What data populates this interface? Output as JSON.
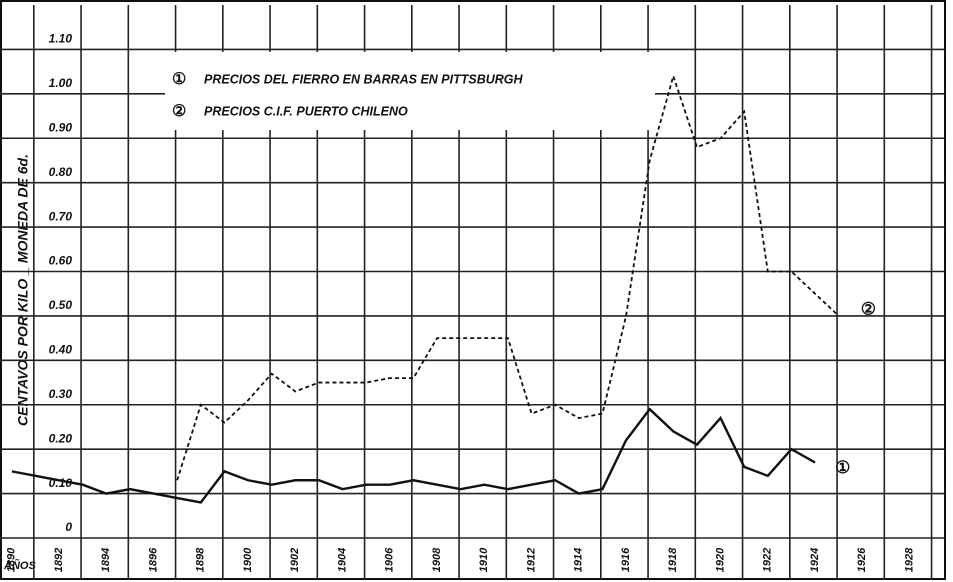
{
  "chart_data": {
    "type": "line",
    "y_label": "CENTAVOS POR KILO _ MONEDA DE 6d.",
    "x_label": "AÑOS",
    "x": [
      1890,
      1891,
      1892,
      1893,
      1894,
      1895,
      1896,
      1897,
      1898,
      1899,
      1900,
      1901,
      1902,
      1903,
      1904,
      1905,
      1906,
      1907,
      1908,
      1909,
      1910,
      1911,
      1912,
      1913,
      1914,
      1915,
      1916,
      1917,
      1918,
      1919,
      1920,
      1921,
      1922,
      1923,
      1924,
      1925
    ],
    "series": [
      {
        "name": "PRECIOS DEL FIERRO EN BARRAS EN PITTSBURGH",
        "label": "①",
        "color": "#111111",
        "dash": false,
        "values": [
          0.15,
          0.14,
          0.13,
          0.12,
          0.1,
          0.11,
          0.1,
          0.09,
          0.08,
          0.15,
          0.13,
          0.12,
          0.13,
          0.13,
          0.11,
          0.12,
          0.12,
          0.13,
          0.12,
          0.11,
          0.12,
          0.11,
          0.12,
          0.13,
          0.1,
          0.11,
          0.22,
          0.29,
          0.24,
          0.21,
          0.27,
          0.16,
          0.14,
          0.2,
          0.17,
          null
        ]
      },
      {
        "name": "PRECIOS C.I.F. PUERTO CHILENO",
        "label": "②",
        "color": "#111111",
        "dash": true,
        "values": [
          null,
          null,
          null,
          null,
          null,
          null,
          null,
          0.13,
          0.3,
          0.26,
          0.31,
          0.37,
          0.33,
          0.35,
          0.35,
          0.35,
          0.36,
          0.36,
          0.45,
          0.45,
          0.45,
          0.45,
          0.28,
          0.3,
          0.27,
          0.28,
          0.5,
          0.85,
          1.04,
          0.88,
          0.9,
          0.96,
          0.6,
          0.6,
          0.55,
          0.5
        ]
      }
    ],
    "xlim": [
      1889.5,
      1929.5
    ],
    "xticks": [
      1890,
      1892,
      1894,
      1896,
      1898,
      1900,
      1902,
      1904,
      1906,
      1908,
      1910,
      1912,
      1914,
      1916,
      1918,
      1920,
      1922,
      1924,
      1926,
      1928
    ],
    "ylim": [
      0,
      1.2
    ],
    "yticks": [
      0,
      {
        "value": 0.1,
        "label": "0.10"
      },
      {
        "value": 0.2,
        "label": "0.20"
      },
      {
        "value": 0.3,
        "label": "0.30"
      },
      {
        "value": 0.4,
        "label": "0.40"
      },
      {
        "value": 0.5,
        "label": "0.50"
      },
      {
        "value": 0.6,
        "label": "0.60"
      },
      {
        "value": 0.7,
        "label": "0.70"
      },
      {
        "value": 0.8,
        "label": "0.80"
      },
      {
        "value": 0.9,
        "label": "0.90"
      },
      {
        "value": 1.0,
        "label": "1.00"
      },
      {
        "value": 1.1,
        "label": "1.10"
      }
    ],
    "grid": true
  }
}
